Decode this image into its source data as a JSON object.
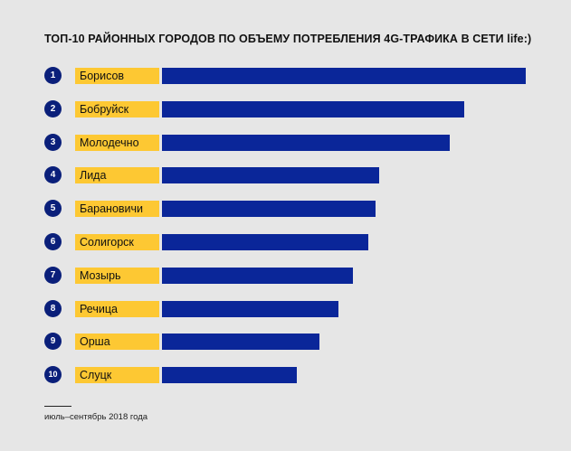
{
  "chart_data": {
    "type": "bar",
    "orientation": "horizontal",
    "title": "ТОП-10 РАЙОННЫХ ГОРОДОВ ПО ОБЪЕМУ ПОТРЕБЛЕНИЯ 4G-ТРАФИКА В СЕТИ life:)",
    "ranks": [
      "1",
      "2",
      "3",
      "4",
      "5",
      "6",
      "7",
      "8",
      "9",
      "10"
    ],
    "categories": [
      "Борисов",
      "Бобруйск",
      "Молодечно",
      "Лида",
      "Барановичи",
      "Солигорск",
      "Мозырь",
      "Речица",
      "Орша",
      "Слуцк"
    ],
    "values": [
      100,
      83.1,
      79.2,
      59.8,
      58.8,
      56.8,
      52.4,
      48.6,
      43.4,
      37.0
    ],
    "value_note": "relative scale, leader = 100 (no axis shown)",
    "xlim": [
      0,
      100
    ],
    "grid": false,
    "footnote": "июль–сентябрь 2018 года",
    "colors": {
      "bar": "#0a2699",
      "label_bg": "#fdc833",
      "rank_bg": "#0a1f7a",
      "background": "#e6e6e6"
    }
  }
}
